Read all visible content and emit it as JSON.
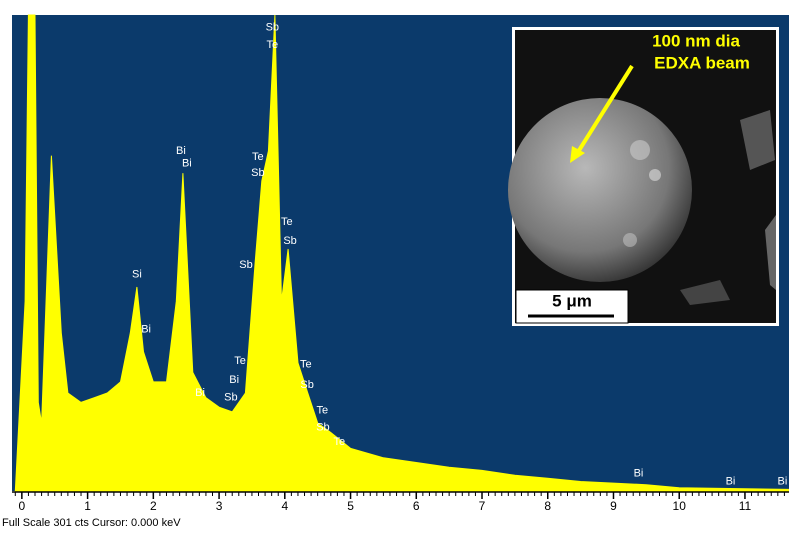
{
  "chart_data": {
    "type": "area",
    "color": "#ffff00",
    "background": "#0b3a6b",
    "footer": "Full Scale 301 cts  Cursor: 0.000 keV",
    "xlim": [
      -0.15,
      11.67
    ],
    "ylim": [
      0,
      301
    ],
    "xticks": [
      0,
      1,
      2,
      3,
      4,
      5,
      6,
      7,
      8,
      9,
      10,
      11
    ],
    "x": [
      -0.1,
      0.05,
      0.1,
      0.2,
      0.25,
      0.3,
      0.45,
      0.6,
      0.7,
      0.9,
      1.1,
      1.3,
      1.5,
      1.65,
      1.75,
      1.85,
      2.0,
      2.2,
      2.35,
      2.45,
      2.6,
      2.8,
      3.0,
      3.2,
      3.4,
      3.55,
      3.65,
      3.75,
      3.85,
      3.95,
      4.05,
      4.2,
      4.35,
      4.5,
      4.7,
      5.0,
      5.5,
      6.0,
      6.5,
      7.0,
      7.5,
      8.0,
      8.5,
      9.0,
      9.5,
      10.0,
      11.67
    ],
    "values": [
      0,
      120,
      301,
      301,
      56,
      43,
      212,
      100,
      62,
      56,
      59,
      62,
      69,
      100,
      129,
      88,
      69,
      69,
      120,
      201,
      75,
      59,
      53,
      50,
      62,
      145,
      196,
      215,
      301,
      120,
      153,
      81,
      62,
      43,
      37,
      27,
      21,
      18,
      15,
      13,
      10,
      8,
      6,
      5,
      4,
      2,
      1
    ],
    "annotations": [
      {
        "text": "Sb",
        "x": 3.81,
        "y": 293
      },
      {
        "text": "Te",
        "x": 3.81,
        "y": 282
      },
      {
        "text": "Bi",
        "x": 2.42,
        "y": 215
      },
      {
        "text": "Bi",
        "x": 2.51,
        "y": 207
      },
      {
        "text": "Te",
        "x": 3.59,
        "y": 211
      },
      {
        "text": "Sb",
        "x": 3.59,
        "y": 201
      },
      {
        "text": "Te",
        "x": 4.03,
        "y": 170
      },
      {
        "text": "Sb",
        "x": 4.08,
        "y": 158
      },
      {
        "text": "Sb",
        "x": 3.41,
        "y": 143
      },
      {
        "text": "Si",
        "x": 1.75,
        "y": 137
      },
      {
        "text": "Bi",
        "x": 1.89,
        "y": 102
      },
      {
        "text": "Bi",
        "x": 2.71,
        "y": 62
      },
      {
        "text": "Te",
        "x": 3.32,
        "y": 82
      },
      {
        "text": "Bi",
        "x": 3.23,
        "y": 70
      },
      {
        "text": "Sb",
        "x": 3.18,
        "y": 59
      },
      {
        "text": "Te",
        "x": 4.32,
        "y": 80
      },
      {
        "text": "Sb",
        "x": 4.34,
        "y": 67
      },
      {
        "text": "Te",
        "x": 4.57,
        "y": 51
      },
      {
        "text": "Sb",
        "x": 4.58,
        "y": 40
      },
      {
        "text": "Te",
        "x": 4.83,
        "y": 31
      },
      {
        "text": "Bi",
        "x": 9.38,
        "y": 11
      },
      {
        "text": "Bi",
        "x": 10.78,
        "y": 6
      },
      {
        "text": "Bi",
        "x": 11.57,
        "y": 6
      }
    ],
    "inset": {
      "label_line1": "100 nm dia",
      "label_line2": "EDXA beam",
      "scale_bar": "5 μm"
    }
  }
}
